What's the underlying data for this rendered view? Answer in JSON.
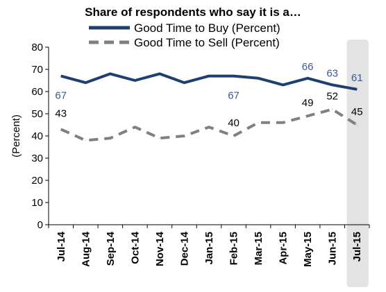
{
  "chart_data": {
    "type": "line",
    "title": "Share of respondents who say it is a…",
    "ylabel": "(Percent)",
    "xlabel": "",
    "ylim": [
      0,
      80
    ],
    "yticks": [
      0,
      10,
      20,
      30,
      40,
      50,
      60,
      70,
      80
    ],
    "categories": [
      "Jul-14",
      "Aug-14",
      "Sep-14",
      "Oct-14",
      "Nov-14",
      "Dec-14",
      "Jan-15",
      "Feb-15",
      "Mar-15",
      "Apr-15",
      "May-15",
      "Jun-15",
      "Jul-15"
    ],
    "legend_position": "top",
    "highlight_category": "Jul-15",
    "series": [
      {
        "name": "Good Time to Buy (Percent)",
        "color": "#1f3f6e",
        "label_color": "#3a5a8c",
        "style": "solid",
        "values": [
          67,
          64,
          68,
          65,
          68,
          64,
          67,
          67,
          66,
          63,
          66,
          63,
          61
        ],
        "data_labels": [
          {
            "index": 0,
            "text": "67"
          },
          {
            "index": 7,
            "text": "67"
          },
          {
            "index": 10,
            "text": "66"
          },
          {
            "index": 11,
            "text": "63"
          },
          {
            "index": 12,
            "text": "61"
          }
        ]
      },
      {
        "name": "Good Time to Sell (Percent)",
        "color": "#808080",
        "label_color": "#000000",
        "style": "dashed",
        "values": [
          43,
          38,
          39,
          44,
          39,
          40,
          44,
          40,
          46,
          46,
          49,
          52,
          45
        ],
        "data_labels": [
          {
            "index": 0,
            "text": "43"
          },
          {
            "index": 7,
            "text": "40"
          },
          {
            "index": 10,
            "text": "49"
          },
          {
            "index": 11,
            "text": "52"
          },
          {
            "index": 12,
            "text": "45"
          }
        ]
      }
    ]
  }
}
